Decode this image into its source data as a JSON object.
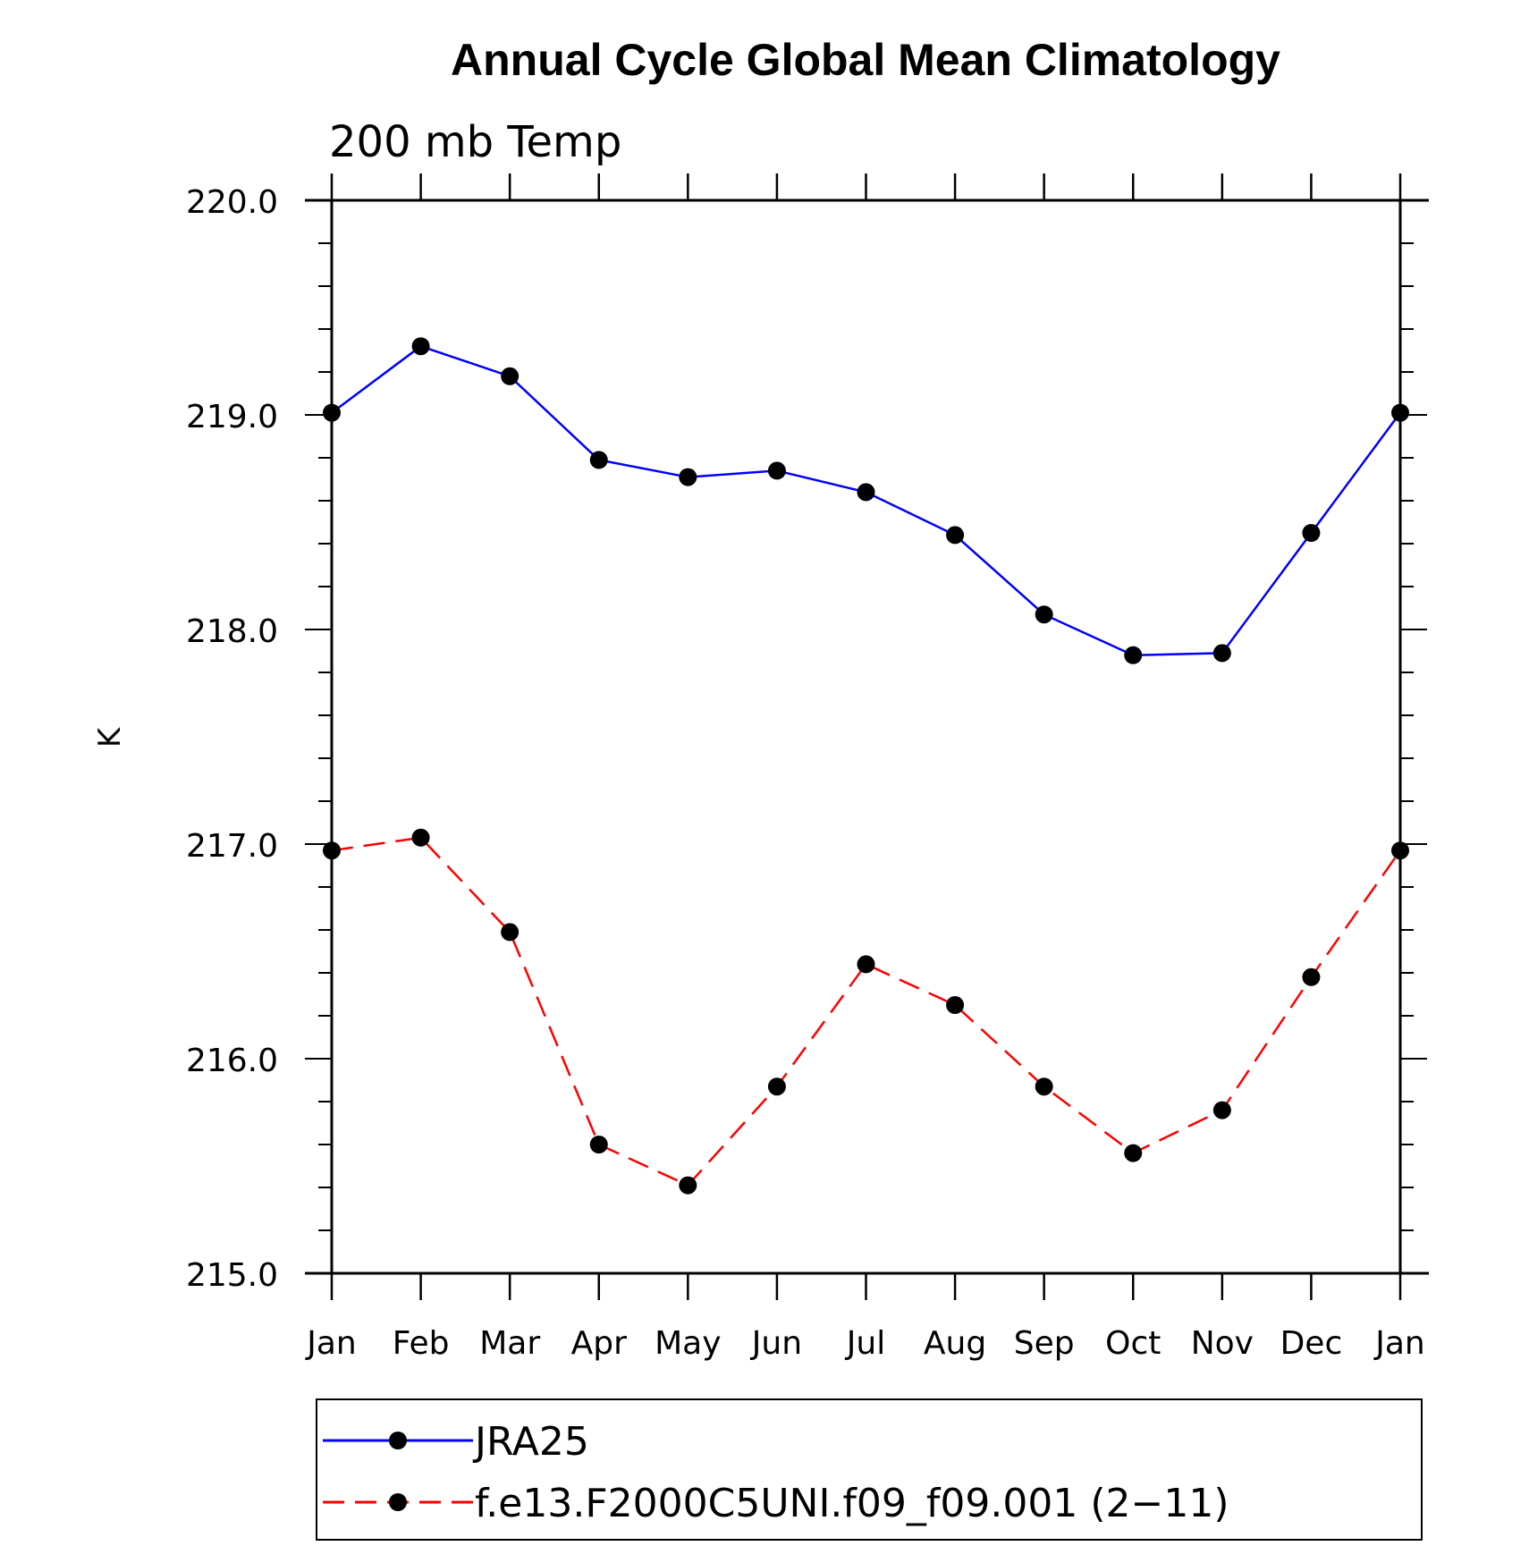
{
  "chart_data": {
    "type": "line",
    "title": "Annual Cycle Global Mean Climatology",
    "subtitle": "200 mb Temp",
    "xlabel": "",
    "ylabel": "K",
    "categories": [
      "Jan",
      "Feb",
      "Mar",
      "Apr",
      "May",
      "Jun",
      "Jul",
      "Aug",
      "Sep",
      "Oct",
      "Nov",
      "Dec",
      "Jan"
    ],
    "ylim": [
      215.0,
      220.0
    ],
    "yticks": [
      "215.0",
      "216.0",
      "217.0",
      "218.0",
      "219.0",
      "220.0"
    ],
    "grid": false,
    "legend_position": "bottom",
    "series": [
      {
        "name": "JRA25",
        "color": "#0000ff",
        "dash": "solid",
        "marker": "filled-circle",
        "values": [
          219.01,
          219.32,
          219.18,
          218.79,
          218.71,
          218.74,
          218.64,
          218.44,
          218.07,
          217.88,
          217.89,
          218.45,
          219.01
        ]
      },
      {
        "name": "f.e13.F2000C5UNI.f09_f09.001 (2−11)",
        "color": "#ff0000",
        "dash": "dashed",
        "marker": "filled-circle",
        "values": [
          216.97,
          217.03,
          216.59,
          215.6,
          215.41,
          215.87,
          216.44,
          216.25,
          215.87,
          215.56,
          215.76,
          216.38,
          216.97
        ]
      }
    ]
  }
}
